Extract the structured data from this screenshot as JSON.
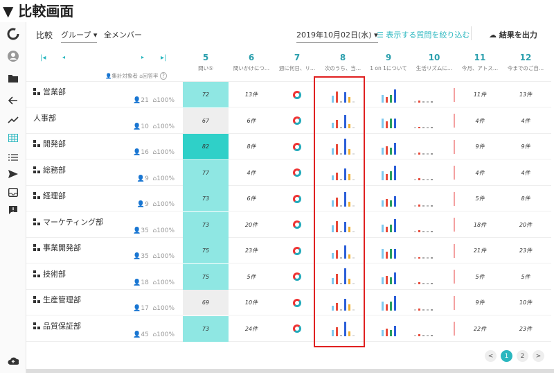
{
  "header": {
    "title": "▼ 比較画面"
  },
  "topbar": {
    "compare_label": "比較",
    "group_label": "グループ",
    "all_members": "全メンバー",
    "date": "2019年10月02日(水)",
    "filter_label": "表示する質問を絞り込む",
    "export_label": "結果を出力"
  },
  "legend": {
    "targets": "集計対象者",
    "response_rate": "回答率",
    "help": "?"
  },
  "columns": [
    {
      "num": "5",
      "label": "問い⑤"
    },
    {
      "num": "6",
      "label": "問いかけにつ..."
    },
    {
      "num": "7",
      "label": "週に何日、リ..."
    },
    {
      "num": "8",
      "label": "次のうち、当..."
    },
    {
      "num": "9",
      "label": "1 on 1について"
    },
    {
      "num": "10",
      "label": "生活リズムに..."
    },
    {
      "num": "11",
      "label": "今月、アトス..."
    },
    {
      "num": "12",
      "label": "今までのご自..."
    }
  ],
  "rows": [
    {
      "name": "営業部",
      "count": "21",
      "rate": "100%",
      "score": "72",
      "c6": "13件",
      "c11": "11件",
      "c12": "13件"
    },
    {
      "name": "人事部",
      "count": "10",
      "rate": "100%",
      "score": "67",
      "c6": "6件",
      "c11": "4件",
      "c12": "4件"
    },
    {
      "name": "開発部",
      "count": "16",
      "rate": "100%",
      "score": "82",
      "c6": "8件",
      "c11": "9件",
      "c12": "9件"
    },
    {
      "name": "総務部",
      "count": "9",
      "rate": "100%",
      "score": "77",
      "c6": "4件",
      "c11": "4件",
      "c12": "4件"
    },
    {
      "name": "経理部",
      "count": "9",
      "rate": "100%",
      "score": "73",
      "c6": "6件",
      "c11": "5件",
      "c12": "8件"
    },
    {
      "name": "マーケティング部",
      "count": "35",
      "rate": "100%",
      "score": "73",
      "c6": "20件",
      "c11": "18件",
      "c12": "20件"
    },
    {
      "name": "事業開発部",
      "count": "35",
      "rate": "100%",
      "score": "75",
      "c6": "23件",
      "c11": "21件",
      "c12": "23件"
    },
    {
      "name": "技術部",
      "count": "18",
      "rate": "100%",
      "score": "75",
      "c6": "5件",
      "c11": "5件",
      "c12": "5件"
    },
    {
      "name": "生産管理部",
      "count": "17",
      "rate": "100%",
      "score": "69",
      "c6": "10件",
      "c11": "9件",
      "c12": "10件"
    },
    {
      "name": "品質保証部",
      "count": "45",
      "rate": "100%",
      "score": "73",
      "c6": "24件",
      "c11": "22件",
      "c12": "23件"
    }
  ],
  "pager": {
    "prev": "<",
    "p1": "1",
    "p2": "2",
    "next": ">"
  }
}
